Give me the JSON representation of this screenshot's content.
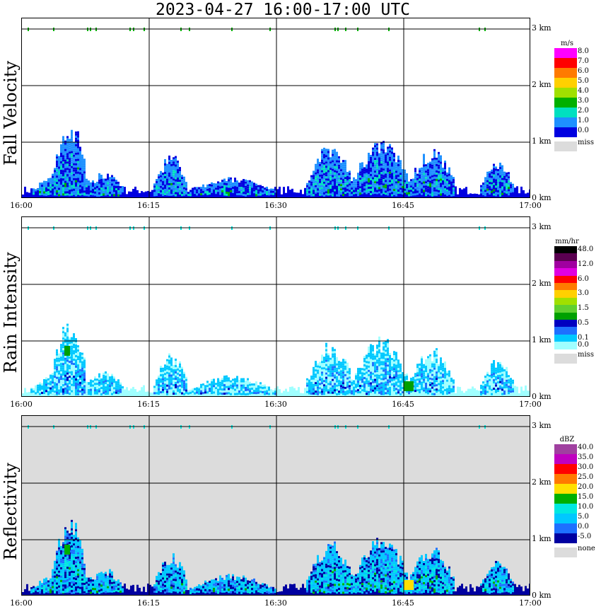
{
  "title": "2023-04-27  16:00-17:00 UTC",
  "x_ticks": [
    "16:00",
    "16:15",
    "16:30",
    "16:45",
    "17:00"
  ],
  "y_ticks": [
    "0 km",
    "1 km",
    "2 km",
    "3 km"
  ],
  "panels": [
    {
      "label": "Fall Velocity",
      "background": "#ffffff",
      "colorbar": {
        "unit": "m/s",
        "levels": [
          {
            "label": "8.0",
            "color": "#ff00ff"
          },
          {
            "label": "7.0",
            "color": "#ff0000"
          },
          {
            "label": "6.0",
            "color": "#ff7a00"
          },
          {
            "label": "5.0",
            "color": "#ffd000"
          },
          {
            "label": "4.0",
            "color": "#a0e000"
          },
          {
            "label": "3.0",
            "color": "#00b000"
          },
          {
            "label": "2.0",
            "color": "#00e0c0"
          },
          {
            "label": "1.0",
            "color": "#1e90ff"
          },
          {
            "label": "0.0",
            "color": "#0000e0"
          }
        ],
        "miss_label": "miss",
        "miss_color": "#dcdcdc"
      }
    },
    {
      "label": "Rain Intensity",
      "background": "#ffffff",
      "colorbar": {
        "unit": "mm/hr",
        "levels": [
          {
            "label": "48.0",
            "color": "#000000"
          },
          {
            "label": "",
            "color": "#5a0050"
          },
          {
            "label": "12.0",
            "color": "#a000a0"
          },
          {
            "label": "",
            "color": "#e000e0"
          },
          {
            "label": "6.0",
            "color": "#ff0000"
          },
          {
            "label": "",
            "color": "#ff7a00"
          },
          {
            "label": "3.0",
            "color": "#ffd000"
          },
          {
            "label": "",
            "color": "#a0e000"
          },
          {
            "label": "1.5",
            "color": "#60d030"
          },
          {
            "label": "",
            "color": "#00a000"
          },
          {
            "label": "0.5",
            "color": "#0000c0"
          },
          {
            "label": "",
            "color": "#1e70ff"
          },
          {
            "label": "0.1",
            "color": "#00c8ff"
          },
          {
            "label": "0.0",
            "color": "#a0ffff"
          }
        ],
        "miss_label": "miss",
        "miss_color": "#dcdcdc"
      }
    },
    {
      "label": "Reflectivity",
      "background": "#dcdcdc",
      "colorbar": {
        "unit": "dBZ",
        "levels": [
          {
            "label": "40.0",
            "color": "#a040a0"
          },
          {
            "label": "35.0",
            "color": "#c000c0"
          },
          {
            "label": "30.0",
            "color": "#ff0000"
          },
          {
            "label": "25.0",
            "color": "#ff7a00"
          },
          {
            "label": "20.0",
            "color": "#ffe000"
          },
          {
            "label": "15.0",
            "color": "#00b000"
          },
          {
            "label": "10.0",
            "color": "#00e8e0"
          },
          {
            "label": "5.0",
            "color": "#00c8ff"
          },
          {
            "label": "0.0",
            "color": "#1e70ff"
          },
          {
            "label": "-5.0",
            "color": "#0000a0"
          }
        ],
        "miss_label": "none",
        "miss_color": "#dcdcdc"
      }
    }
  ],
  "chart_data": {
    "type": "heatmap",
    "title": "2023-04-27  16:00-17:00 UTC",
    "x_range": [
      "16:00",
      "17:00"
    ],
    "y_range_km": [
      0,
      3.2
    ],
    "grid": true,
    "precip_cells": [
      {
        "t_min": 1.0,
        "t_max": 9.5,
        "top_km": 0.5,
        "fv": 1.0,
        "ri": 0.1,
        "dbz": 5
      },
      {
        "t_min": 3.5,
        "t_max": 7.5,
        "top_km": 1.5,
        "fv": 2.0,
        "ri": 0.5,
        "dbz": 15
      },
      {
        "t_min": 7.5,
        "t_max": 12.0,
        "top_km": 0.5,
        "fv": 0.5,
        "ri": 0.1,
        "dbz": 0
      },
      {
        "t_min": 15.5,
        "t_max": 19.5,
        "top_km": 0.8,
        "fv": 1.5,
        "ri": 0.5,
        "dbz": 10
      },
      {
        "t_min": 19.5,
        "t_max": 30.0,
        "top_km": 0.4,
        "fv": 0.5,
        "ri": 0.1,
        "dbz": 0
      },
      {
        "t_min": 33.5,
        "t_max": 39.0,
        "top_km": 1.0,
        "fv": 2.0,
        "ri": 0.5,
        "dbz": 15
      },
      {
        "t_min": 39.0,
        "t_max": 45.5,
        "top_km": 1.1,
        "fv": 2.0,
        "ri": 1.5,
        "dbz": 20
      },
      {
        "t_min": 45.5,
        "t_max": 51.0,
        "top_km": 0.9,
        "fv": 2.0,
        "ri": 1.5,
        "dbz": 20
      },
      {
        "t_min": 54.0,
        "t_max": 58.0,
        "top_km": 0.7,
        "fv": 1.0,
        "ri": 0.1,
        "dbz": 5
      }
    ]
  }
}
